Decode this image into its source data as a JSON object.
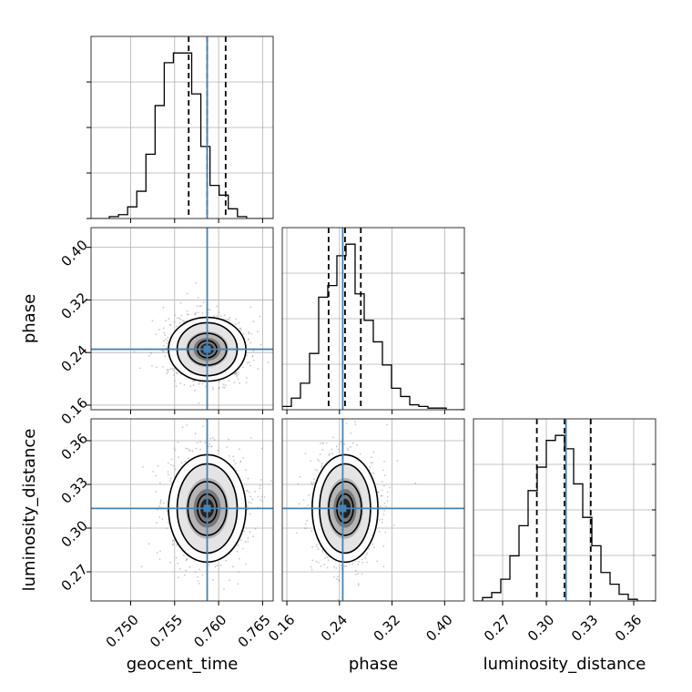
{
  "chart_data": {
    "type": "corner",
    "parameters": [
      "geocent_time",
      "phase",
      "luminosity_distance"
    ],
    "truths": [
      0.7587,
      0.245,
      0.3135
    ],
    "truth_color": "#4682b4",
    "ranges": [
      [
        0.7455,
        0.7662
      ],
      [
        0.153,
        0.43
      ],
      [
        0.25,
        0.375
      ]
    ],
    "ticks": [
      [
        "0.750",
        "0.755",
        "0.760",
        "0.765"
      ],
      [
        "0.16",
        "0.24",
        "0.32",
        "0.40"
      ],
      [
        "0.27",
        "0.30",
        "0.33",
        "0.36"
      ]
    ],
    "tick_values": [
      [
        0.75,
        0.755,
        0.76,
        0.765
      ],
      [
        0.16,
        0.24,
        0.32,
        0.4
      ],
      [
        0.27,
        0.3,
        0.33,
        0.36
      ]
    ],
    "quantiles": [
      [
        0.7566,
        0.7587,
        0.7608
      ],
      [
        0.2235,
        0.2485,
        0.2725
      ],
      [
        0.2935,
        0.3125,
        0.3305
      ]
    ],
    "histograms": [
      {
        "param": "geocent_time",
        "edges_start": 0.7455,
        "bin_width": 0.00104,
        "counts": [
          0,
          0,
          1,
          2,
          6,
          14,
          33,
          58,
          80,
          85,
          85,
          64,
          37,
          17,
          12,
          5,
          1,
          0,
          0,
          0
        ]
      },
      {
        "param": "phase",
        "edges_start": 0.153,
        "bin_width": 0.01385,
        "counts": [
          2,
          7,
          16,
          34,
          68,
          75,
          93,
          100,
          70,
          54,
          41,
          27,
          13,
          8,
          3,
          2,
          1,
          1,
          0,
          0
        ]
      },
      {
        "param": "luminosity_distance",
        "edges_start": 0.25,
        "bin_width": 0.00625,
        "counts": [
          0,
          2,
          5,
          13,
          27,
          45,
          66,
          80,
          96,
          99,
          91,
          70,
          50,
          33,
          17,
          10,
          4,
          1,
          0,
          0
        ]
      }
    ],
    "joint_panels": [
      {
        "x": "geocent_time",
        "y": "phase",
        "center": [
          0.7587,
          0.245
        ],
        "sigma": [
          0.0022,
          0.025
        ]
      },
      {
        "x": "geocent_time",
        "y": "luminosity_distance",
        "center": [
          0.7587,
          0.3135
        ],
        "sigma": [
          0.0022,
          0.019
        ]
      },
      {
        "x": "phase",
        "y": "luminosity_distance",
        "center": [
          0.2485,
          0.3135
        ],
        "sigma": [
          0.025,
          0.019
        ]
      }
    ],
    "grid": true
  }
}
